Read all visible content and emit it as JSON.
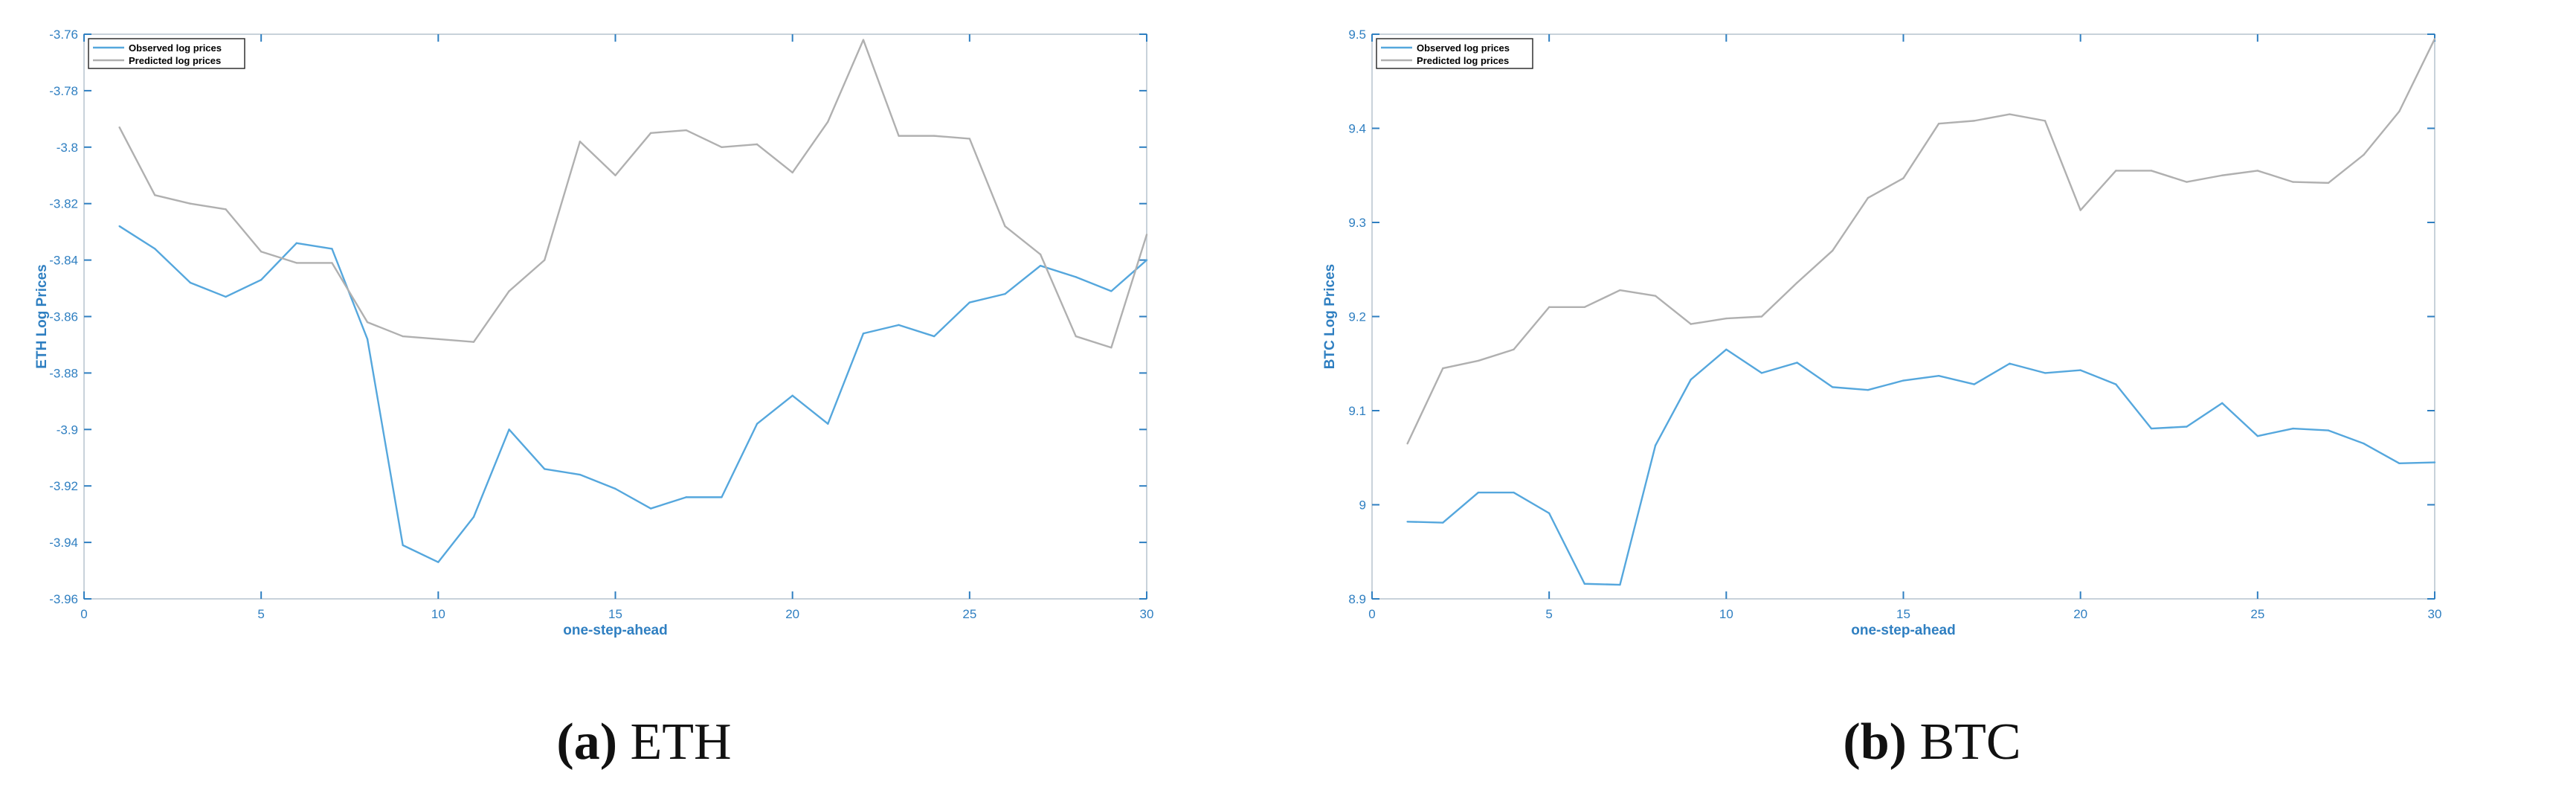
{
  "colors": {
    "observed": "#55a7dd",
    "predicted": "#b0b0b0",
    "axis": "#2f7fc1",
    "frame": "#c8d2da"
  },
  "figure": {
    "panels": [
      {
        "tag": "(a)",
        "label": "ETH"
      },
      {
        "tag": "(b)",
        "label": "BTC"
      }
    ]
  },
  "chart_data": [
    {
      "type": "line",
      "xlabel": "one-step-ahead",
      "ylabel": "ETH Log Prices",
      "xlim": [
        0,
        30
      ],
      "ylim": [
        -3.96,
        -3.76
      ],
      "xticks": [
        0,
        5,
        10,
        15,
        20,
        25,
        30
      ],
      "xtick_labels": [
        "0",
        "5",
        "10",
        "15",
        "20",
        "25",
        "30"
      ],
      "yticks": [
        -3.96,
        -3.94,
        -3.92,
        -3.9,
        -3.88,
        -3.86,
        -3.84,
        -3.82,
        -3.8,
        -3.78,
        -3.76
      ],
      "ytick_labels": [
        "-3.96",
        "-3.94",
        "-3.92",
        "-3.9",
        "-3.88",
        "-3.86",
        "-3.84",
        "-3.82",
        "-3.8",
        "-3.78",
        "-3.76"
      ],
      "grid": false,
      "legend_position": "top-left",
      "x": [
        1,
        2,
        3,
        4,
        5,
        6,
        7,
        8,
        9,
        10,
        11,
        12,
        13,
        14,
        15,
        16,
        17,
        18,
        19,
        20,
        21,
        22,
        23,
        24,
        25,
        26,
        27,
        28,
        29,
        30
      ],
      "series": [
        {
          "name": "Observed log prices",
          "color": "#55a7dd",
          "values": [
            -3.828,
            -3.836,
            -3.848,
            -3.853,
            -3.847,
            -3.834,
            -3.836,
            -3.868,
            -3.941,
            -3.947,
            -3.931,
            -3.9,
            -3.914,
            -3.916,
            -3.921,
            -3.928,
            -3.924,
            -3.924,
            -3.898,
            -3.888,
            -3.898,
            -3.866,
            -3.863,
            -3.867,
            -3.855,
            -3.852,
            -3.842,
            -3.846,
            -3.851,
            -3.84
          ]
        },
        {
          "name": "Predicted log prices",
          "color": "#b0b0b0",
          "values": [
            -3.793,
            -3.817,
            -3.82,
            -3.822,
            -3.837,
            -3.841,
            -3.841,
            -3.862,
            -3.867,
            -3.868,
            -3.869,
            -3.851,
            -3.84,
            -3.798,
            -3.81,
            -3.795,
            -3.794,
            -3.8,
            -3.799,
            -3.809,
            -3.791,
            -3.762,
            -3.796,
            -3.796,
            -3.797,
            -3.828,
            -3.838,
            -3.867,
            -3.871,
            -3.831
          ]
        }
      ]
    },
    {
      "type": "line",
      "xlabel": "one-step-ahead",
      "ylabel": "BTC Log Prices",
      "xlim": [
        0,
        30
      ],
      "ylim": [
        8.9,
        9.5
      ],
      "xticks": [
        0,
        5,
        10,
        15,
        20,
        25,
        30
      ],
      "xtick_labels": [
        "0",
        "5",
        "10",
        "15",
        "20",
        "25",
        "30"
      ],
      "yticks": [
        8.9,
        9.0,
        9.1,
        9.2,
        9.3,
        9.4,
        9.5
      ],
      "ytick_labels": [
        "8.9",
        "9",
        "9.1",
        "9.2",
        "9.3",
        "9.4",
        "9.5"
      ],
      "grid": false,
      "legend_position": "top-left",
      "x": [
        1,
        2,
        3,
        4,
        5,
        6,
        7,
        8,
        9,
        10,
        11,
        12,
        13,
        14,
        15,
        16,
        17,
        18,
        19,
        20,
        21,
        22,
        23,
        24,
        25,
        26,
        27,
        28,
        29,
        30
      ],
      "series": [
        {
          "name": "Observed log prices",
          "color": "#55a7dd",
          "values": [
            8.982,
            8.981,
            9.013,
            9.013,
            8.991,
            8.916,
            8.915,
            9.063,
            9.133,
            9.165,
            9.14,
            9.151,
            9.125,
            9.122,
            9.132,
            9.137,
            9.128,
            9.15,
            9.14,
            9.143,
            9.128,
            9.081,
            9.083,
            9.108,
            9.073,
            9.081,
            9.079,
            9.065,
            9.044,
            9.045
          ]
        },
        {
          "name": "Predicted log prices",
          "color": "#b0b0b0",
          "values": [
            9.065,
            9.145,
            9.153,
            9.165,
            9.21,
            9.21,
            9.228,
            9.222,
            9.192,
            9.198,
            9.2,
            9.236,
            9.27,
            9.326,
            9.347,
            9.405,
            9.408,
            9.415,
            9.408,
            9.313,
            9.355,
            9.355,
            9.343,
            9.35,
            9.355,
            9.343,
            9.342,
            9.372,
            9.418,
            9.495
          ]
        }
      ]
    }
  ]
}
